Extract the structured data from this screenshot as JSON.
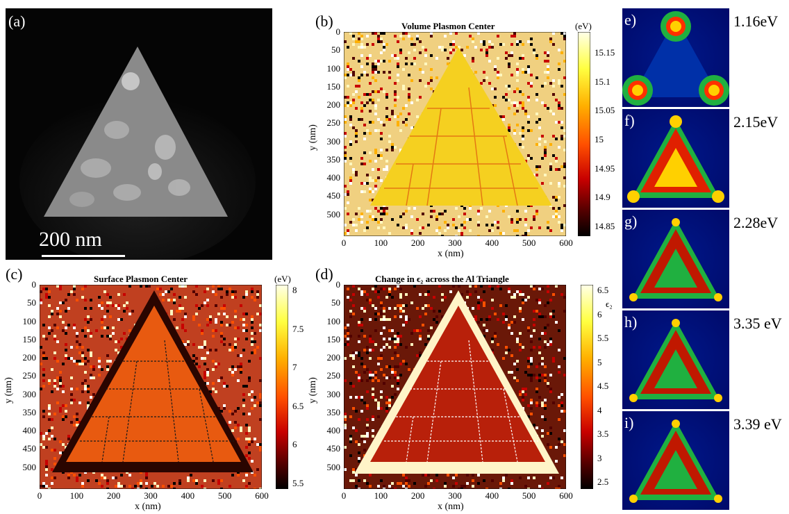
{
  "panel_a": {
    "label": "(a)",
    "scale_bar_text": "200 nm"
  },
  "panel_b": {
    "label": "(b)",
    "title": "Volume Plasmon Center",
    "colorbar_unit": "(eV)",
    "colorbar_ticks": [
      "15.15",
      "15.1",
      "15.05",
      "15",
      "14.95",
      "14.9",
      "14.85"
    ],
    "colorbar_colors": [
      "#ffffe8",
      "#ffff40",
      "#ffb000",
      "#ff5000",
      "#c80000",
      "#500000",
      "#000000"
    ]
  },
  "panel_c": {
    "label": "(c)",
    "title": "Surface Plasmon Center",
    "colorbar_unit": "(eV)",
    "colorbar_ticks": [
      "8",
      "7.5",
      "7",
      "6.5",
      "6",
      "5.5"
    ],
    "colorbar_colors": [
      "#ffffe8",
      "#ffff40",
      "#ffb000",
      "#ff5000",
      "#c80000",
      "#500000",
      "#000000"
    ]
  },
  "panel_d": {
    "label": "(d)",
    "title": "Change in ϵ₂ across the Al Triangle",
    "colorbar_unit": "ϵ₂",
    "colorbar_ticks": [
      "6.5",
      "6",
      "5.5",
      "5",
      "4.5",
      "4",
      "3.5",
      "3",
      "2.5"
    ],
    "colorbar_colors": [
      "#ffffe8",
      "#ffff40",
      "#ffb000",
      "#ff5000",
      "#c80000",
      "#500000",
      "#000000"
    ]
  },
  "axes": {
    "xlabel": "x (nm)",
    "ylabel": "y (nm)",
    "x_ticks": [
      "0",
      "100",
      "200",
      "300",
      "400",
      "500",
      "600"
    ],
    "y_ticks": [
      "0",
      "50",
      "100",
      "150",
      "200",
      "250",
      "300",
      "350",
      "400",
      "450",
      "500"
    ]
  },
  "side_panels": [
    {
      "letter": "e)",
      "energy": "1.16eV"
    },
    {
      "letter": "f)",
      "energy": "2.15eV"
    },
    {
      "letter": "g)",
      "energy": "2.28eV"
    },
    {
      "letter": "h)",
      "energy": "3.35 eV"
    },
    {
      "letter": "i)",
      "energy": "3.39 eV"
    }
  ],
  "colors": {
    "triangle_b": "#f5d020",
    "triangle_c": "#e85a10",
    "triangle_d": "#b8200a",
    "side_blue": "#001890",
    "side_green": "#20b040",
    "side_hot": "#ffd000"
  }
}
